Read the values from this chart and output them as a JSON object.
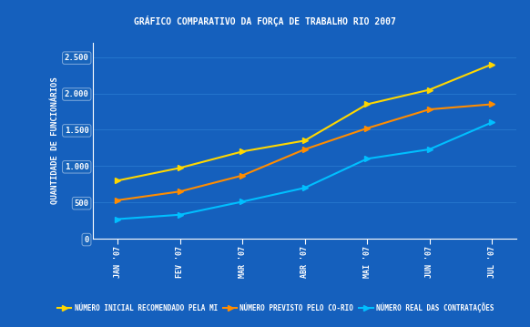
{
  "title": "GRÁFICO COMPARATIVO DA FORÇA DE TRABALHO RIO 2007",
  "xlabel_labels": [
    "JAN '07",
    "FEV '07",
    "MAR '07",
    "ABR '07",
    "MAI '07",
    "JUN '07",
    "JUL '07"
  ],
  "ylabel": "QUANTIDADE DE FUNCIONÁRIOS",
  "yticks": [
    0,
    500,
    1000,
    1500,
    2000,
    2500
  ],
  "ylim": [
    0,
    2700
  ],
  "series": [
    {
      "name": "NÚMERO INICIAL RECOMENDADO PELA MI",
      "color": "#FFD700",
      "values": [
        800,
        975,
        1200,
        1350,
        1850,
        2050,
        2400
      ]
    },
    {
      "name": "NÚMERO PREVISTO PELO CO-RIO",
      "color": "#FF8C00",
      "values": [
        530,
        650,
        870,
        1230,
        1520,
        1780,
        1850
      ]
    },
    {
      "name": "NÚMERO REAL DAS CONTRATAÇÕES",
      "color": "#00BFFF",
      "values": [
        270,
        330,
        510,
        700,
        1100,
        1230,
        1600
      ]
    }
  ],
  "bg_color": "#1560BD",
  "grid_color": "#2575CC",
  "text_color": "#FFFFFF",
  "tick_box_face": "#1864BB",
  "tick_box_edge": "#7FAADD",
  "border_color": "#4488CC",
  "spine_color": "#FFFFFF",
  "legend_fontsize": 5.5,
  "title_fontsize": 7.0,
  "ylabel_fontsize": 6.5,
  "ytick_fontsize": 6.5,
  "xtick_fontsize": 6.0
}
